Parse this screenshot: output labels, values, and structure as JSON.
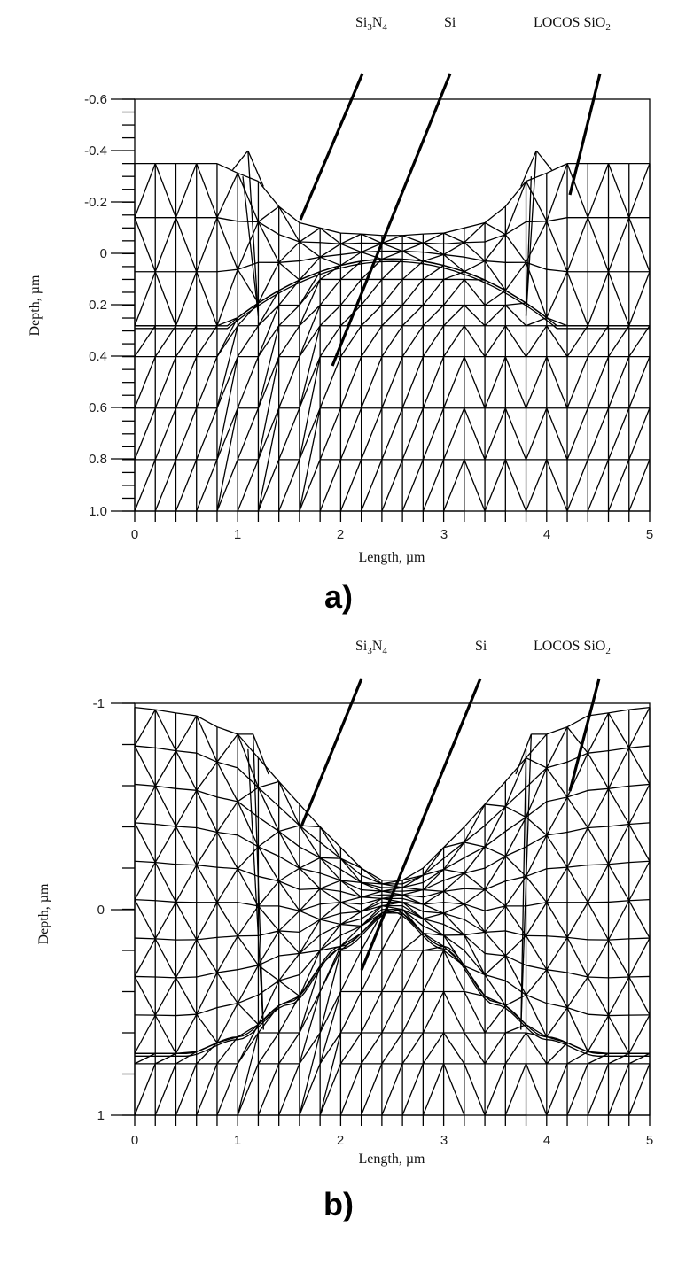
{
  "figure": {
    "panels": [
      {
        "label": "a)",
        "xlabel": "Length, µm",
        "ylabel": "Depth, µm",
        "xticks": [
          "0",
          "1",
          "2",
          "3",
          "4",
          "5"
        ],
        "yticks": [
          "-0.6",
          "-0.4",
          "-0.2",
          "0",
          "0.2",
          "0.4",
          "0.6",
          "0.8",
          "1.0"
        ],
        "annotations": [
          {
            "text": "Si₃N₄",
            "base": "Si",
            "sub1": "3",
            "mid": "N",
            "sub2": "4"
          },
          {
            "text": "Si"
          },
          {
            "text": "LOCOS SiO₂",
            "base": "LOCOS SiO",
            "sub": "2"
          }
        ]
      },
      {
        "label": "b)",
        "xlabel": "Length, µm",
        "ylabel": "Depth, µm",
        "xticks": [
          "0",
          "1",
          "2",
          "3",
          "4",
          "5"
        ],
        "yticks": [
          "-1",
          "0",
          "1"
        ],
        "annotations": [
          {
            "text": "Si₃N₄",
            "base": "Si",
            "sub1": "3",
            "mid": "N",
            "sub2": "4"
          },
          {
            "text": "Si"
          },
          {
            "text": "LOCOS SiO₂",
            "base": "LOCOS SiO",
            "sub": "2"
          }
        ]
      }
    ]
  },
  "chart_data": [
    {
      "type": "mesh",
      "title": "a)",
      "xlabel": "Length, µm",
      "ylabel": "Depth, µm",
      "xlim": [
        0,
        5
      ],
      "ylim": [
        -0.6,
        1.0
      ],
      "y_inverted": true,
      "x_ticks": [
        0,
        1,
        2,
        3,
        4,
        5
      ],
      "y_ticks": [
        -0.6,
        -0.4,
        -0.2,
        0,
        0.2,
        0.4,
        0.6,
        0.8,
        1.0
      ],
      "mesh_column_spacing_um": 0.2,
      "surface_profile": {
        "x": [
          0,
          0.8,
          1.1,
          1.6,
          2.0,
          2.5,
          3.0,
          3.4,
          3.9,
          4.2,
          5.0
        ],
        "y": [
          -0.35,
          -0.35,
          -0.3,
          -0.12,
          -0.08,
          -0.07,
          -0.08,
          -0.12,
          -0.3,
          -0.35,
          -0.35
        ]
      },
      "bird_beak_peaks": [
        {
          "x": 1.1,
          "y": -0.4
        },
        {
          "x": 3.9,
          "y": -0.4
        }
      ],
      "si_interface_center_y": 0.02,
      "annotations": [
        {
          "label": "Si3N4",
          "points_to": {
            "x": 1.6,
            "y": -0.12
          }
        },
        {
          "label": "Si",
          "points_to": {
            "x": 1.95,
            "y": 0.45
          }
        },
        {
          "label": "LOCOS SiO2",
          "points_to": {
            "x": 4.2,
            "y": -0.24
          }
        }
      ]
    },
    {
      "type": "mesh",
      "title": "b)",
      "xlabel": "Length, µm",
      "ylabel": "Depth, µm",
      "xlim": [
        0,
        5
      ],
      "ylim": [
        -1,
        1
      ],
      "y_inverted": true,
      "x_ticks": [
        0,
        1,
        2,
        3,
        4,
        5
      ],
      "y_ticks": [
        -1,
        0,
        1
      ],
      "mesh_column_spacing_um": 0.2,
      "surface_profile": {
        "x": [
          0,
          0.5,
          1.0,
          1.4,
          1.8,
          2.2,
          2.5,
          2.8,
          3.2,
          3.6,
          4.0,
          4.5,
          5.0
        ],
        "y": [
          -0.98,
          -0.95,
          -0.85,
          -0.62,
          -0.4,
          -0.2,
          -0.12,
          -0.2,
          -0.4,
          -0.62,
          -0.85,
          -0.95,
          -0.98
        ]
      },
      "bird_beak_peaks": [
        {
          "x": 1.15,
          "y": -0.85
        },
        {
          "x": 3.85,
          "y": -0.85
        }
      ],
      "si_interface_profile": {
        "x": [
          0,
          0.5,
          1.0,
          1.5,
          2.0,
          2.5,
          3.0,
          3.5,
          4.0,
          4.5,
          5.0
        ],
        "y": [
          0.7,
          0.7,
          0.62,
          0.45,
          0.18,
          0.0,
          0.18,
          0.45,
          0.62,
          0.7,
          0.7
        ]
      },
      "annotations": [
        {
          "label": "Si3N4",
          "points_to": {
            "x": 1.6,
            "y": -0.42
          }
        },
        {
          "label": "Si",
          "points_to": {
            "x": 2.2,
            "y": 0.28
          }
        },
        {
          "label": "LOCOS SiO2",
          "points_to": {
            "x": 4.2,
            "y": -0.58
          }
        }
      ]
    }
  ]
}
